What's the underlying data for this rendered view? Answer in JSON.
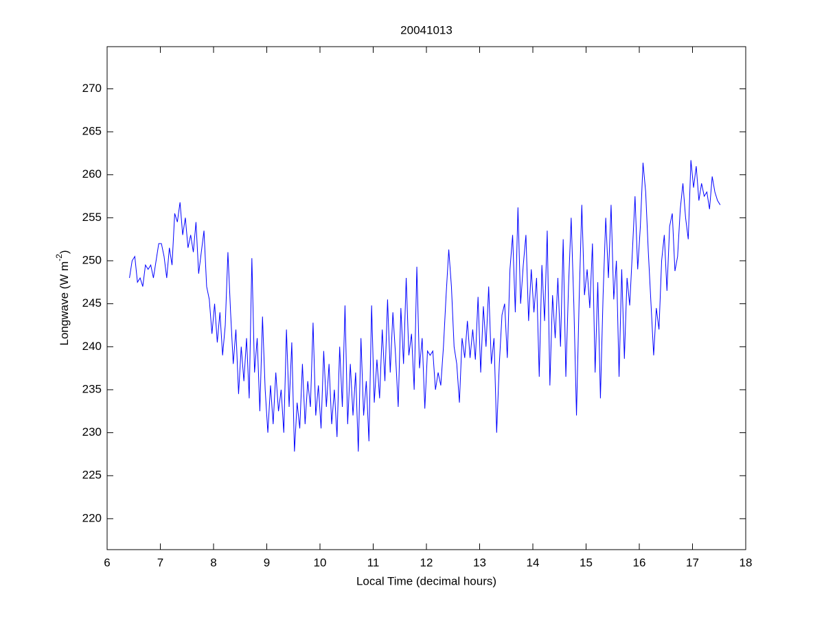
{
  "chart_data": {
    "type": "line",
    "title": "20041013",
    "xlabel": "Local Time (decimal hours)",
    "ylabel": {
      "text": "Longwave (W m",
      "superscript": "-2",
      "suffix": ")"
    },
    "xlim": [
      6,
      18
    ],
    "xticks": [
      6,
      7,
      8,
      9,
      10,
      11,
      12,
      13,
      14,
      15,
      16,
      17,
      18
    ],
    "ylim": [
      216.4,
      274.9
    ],
    "yticks": [
      220,
      225,
      230,
      235,
      240,
      245,
      250,
      255,
      260,
      265,
      270
    ],
    "grid": false,
    "series": [
      {
        "color": "#0000ff",
        "x": [
          6.42,
          6.47,
          6.52,
          6.57,
          6.62,
          6.67,
          6.72,
          6.77,
          6.82,
          6.87,
          6.92,
          6.97,
          7.02,
          7.07,
          7.12,
          7.17,
          7.22,
          7.27,
          7.32,
          7.37,
          7.42,
          7.47,
          7.52,
          7.57,
          7.62,
          7.67,
          7.72,
          7.77,
          7.82,
          7.87,
          7.92,
          7.97,
          8.02,
          8.07,
          8.12,
          8.17,
          8.22,
          8.27,
          8.32,
          8.37,
          8.42,
          8.47,
          8.52,
          8.57,
          8.62,
          8.67,
          8.72,
          8.77,
          8.82,
          8.87,
          8.92,
          8.97,
          9.02,
          9.07,
          9.12,
          9.17,
          9.22,
          9.27,
          9.32,
          9.37,
          9.42,
          9.47,
          9.52,
          9.57,
          9.62,
          9.67,
          9.72,
          9.77,
          9.82,
          9.87,
          9.92,
          9.97,
          10.02,
          10.07,
          10.12,
          10.17,
          10.22,
          10.27,
          10.32,
          10.37,
          10.42,
          10.47,
          10.52,
          10.57,
          10.62,
          10.67,
          10.72,
          10.77,
          10.82,
          10.87,
          10.92,
          10.97,
          11.02,
          11.07,
          11.12,
          11.17,
          11.22,
          11.27,
          11.32,
          11.37,
          11.42,
          11.47,
          11.52,
          11.57,
          11.62,
          11.67,
          11.72,
          11.77,
          11.82,
          11.87,
          11.92,
          11.97,
          12.02,
          12.07,
          12.12,
          12.17,
          12.22,
          12.27,
          12.32,
          12.37,
          12.42,
          12.47,
          12.52,
          12.57,
          12.62,
          12.67,
          12.72,
          12.77,
          12.82,
          12.87,
          12.92,
          12.97,
          13.02,
          13.07,
          13.12,
          13.17,
          13.22,
          13.27,
          13.32,
          13.37,
          13.42,
          13.47,
          13.52,
          13.57,
          13.62,
          13.67,
          13.72,
          13.77,
          13.82,
          13.87,
          13.92,
          13.97,
          14.02,
          14.07,
          14.12,
          14.17,
          14.22,
          14.27,
          14.32,
          14.37,
          14.42,
          14.47,
          14.52,
          14.57,
          14.62,
          14.67,
          14.72,
          14.77,
          14.82,
          14.87,
          14.92,
          14.97,
          15.02,
          15.07,
          15.12,
          15.17,
          15.22,
          15.27,
          15.32,
          15.37,
          15.42,
          15.47,
          15.52,
          15.57,
          15.62,
          15.67,
          15.72,
          15.77,
          15.82,
          15.87,
          15.92,
          15.97,
          16.02,
          16.07,
          16.12,
          16.17,
          16.22,
          16.27,
          16.32,
          16.37,
          16.42,
          16.47,
          16.52,
          16.57,
          16.62,
          16.67,
          16.72,
          16.77,
          16.82,
          16.87,
          16.92,
          16.97,
          17.02,
          17.07,
          17.12,
          17.17,
          17.22,
          17.27,
          17.32,
          17.37,
          17.42,
          17.47,
          17.52
        ],
        "values": [
          248,
          250,
          250.5,
          247.5,
          248,
          247,
          249.5,
          249,
          249.5,
          248,
          250,
          252,
          252,
          250.5,
          248,
          251.5,
          249.5,
          255.5,
          254.5,
          256.8,
          253,
          255,
          251.5,
          253,
          251,
          254.5,
          248.5,
          251,
          253.5,
          247,
          245.5,
          241.5,
          245,
          240.5,
          244,
          239,
          242.5,
          251,
          244,
          238,
          242,
          234.5,
          240,
          236,
          241,
          234,
          250.3,
          237,
          241,
          232.5,
          243.5,
          235,
          230,
          235.5,
          231,
          237,
          232.5,
          235,
          230,
          242,
          233,
          240.5,
          227.8,
          233.5,
          230.5,
          238,
          231,
          236,
          233,
          242.8,
          232,
          235.5,
          230.5,
          239.5,
          233,
          238,
          231,
          235,
          229.5,
          240,
          233,
          244.8,
          231,
          238,
          232,
          237,
          227.8,
          241,
          232,
          236,
          229,
          244.8,
          233.5,
          238.5,
          234,
          242,
          236,
          245.5,
          237,
          244,
          239,
          233,
          244.5,
          238,
          248,
          239,
          241.5,
          235,
          249.3,
          237.5,
          241,
          232.8,
          239.5,
          239,
          239.5,
          235,
          237,
          235.5,
          240,
          246,
          251.3,
          247,
          240,
          238,
          233.5,
          241,
          238.7,
          243,
          238.7,
          242,
          238.5,
          245.8,
          237,
          244.7,
          240,
          247,
          238,
          241,
          230,
          238,
          243.7,
          245,
          238.7,
          249,
          253,
          244,
          256.2,
          245,
          249.5,
          253,
          243,
          249,
          244,
          248,
          236.5,
          249.5,
          243,
          253.5,
          235.5,
          246,
          241,
          248,
          240,
          252.5,
          236.5,
          247,
          255,
          245,
          232,
          245.5,
          256.5,
          246,
          249,
          244.5,
          252,
          237,
          247.5,
          234,
          246,
          255,
          248,
          256.5,
          245.5,
          250,
          236.5,
          249,
          238.6,
          248,
          244.8,
          251,
          257.5,
          249,
          254,
          261.4,
          258,
          251,
          245,
          239,
          244.5,
          242,
          250,
          253,
          246.5,
          254,
          255.5,
          248.8,
          250.5,
          256,
          259,
          255,
          252.5,
          261.7,
          258.5,
          261,
          257,
          259,
          257.5,
          258,
          256,
          259.8,
          258,
          257,
          256.5
        ]
      }
    ]
  }
}
